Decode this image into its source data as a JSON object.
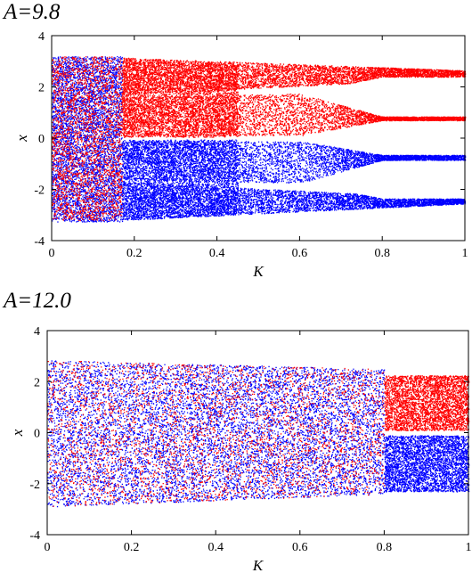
{
  "chart_data": [
    {
      "type": "scatter",
      "title": "A=9.8",
      "xlabel": "K",
      "ylabel": "x",
      "xlim": [
        0,
        1
      ],
      "ylim": [
        -4,
        4
      ],
      "xticks": [
        "0",
        "0.2",
        "0.4",
        "0.6",
        "0.8",
        "1"
      ],
      "yticks": [
        "4",
        "2",
        "0",
        "-2",
        "-4"
      ],
      "grid": false,
      "series": [
        {
          "color": "#ff0000",
          "segments": [
            {
              "k_start": 0.0,
              "k_end": 0.17,
              "x_low": 0.05,
              "x_high": 3.2,
              "mixed_with_blue": true
            },
            {
              "k_start": 0.17,
              "k_end": 0.6,
              "upper_band": [
                1.75,
                3.15
              ],
              "lower_band": [
                0.05,
                1.75
              ],
              "note_at_ends": {
                "upper_end_k1": [
                  2.35,
                  2.6
                ],
                "lower_end_k1": [
                  0.7,
                  0.85
                ]
              }
            },
            {
              "k_start": 0.6,
              "k_end": 1.0,
              "branches": [
                [
                  2.4,
                  2.65
                ],
                [
                  0.7,
                  0.85
                ]
              ]
            }
          ]
        },
        {
          "color": "#0000ff",
          "segments": [
            {
              "k_start": 0.0,
              "k_end": 0.17,
              "x_low": -3.25,
              "x_high": 3.2,
              "mixed_with_red": true
            },
            {
              "k_start": 0.17,
              "k_end": 0.6,
              "upper_band": [
                -1.75,
                -0.05
              ],
              "lower_band": [
                -3.2,
                -1.75
              ]
            },
            {
              "k_start": 0.6,
              "k_end": 1.0,
              "branches": [
                [
                  -0.85,
                  -0.65
                ],
                [
                  -2.55,
                  -2.35
                ]
              ]
            }
          ]
        }
      ]
    },
    {
      "type": "scatter",
      "title": "A=12.0",
      "xlabel": "K",
      "ylabel": "x",
      "xlim": [
        0,
        1
      ],
      "ylim": [
        -4,
        4
      ],
      "xticks": [
        "0",
        "0.2",
        "0.4",
        "0.6",
        "0.8",
        "1"
      ],
      "yticks": [
        "4",
        "2",
        "0",
        "-2",
        "-4"
      ],
      "grid": false,
      "series": [
        {
          "color": "#ff0000",
          "segments": [
            {
              "k_start": 0.0,
              "k_end": 0.8,
              "x_low": -2.9,
              "x_high": 2.85,
              "mixed_with_blue": true
            },
            {
              "k_start": 0.8,
              "k_end": 1.0,
              "x_low": 0.1,
              "x_high": 2.25
            }
          ]
        },
        {
          "color": "#0000ff",
          "segments": [
            {
              "k_start": 0.0,
              "k_end": 0.8,
              "x_low": -2.9,
              "x_high": 2.85,
              "mixed_with_red": true
            },
            {
              "k_start": 0.8,
              "k_end": 1.0,
              "x_low": -2.3,
              "x_high": -0.1
            }
          ]
        }
      ]
    }
  ]
}
